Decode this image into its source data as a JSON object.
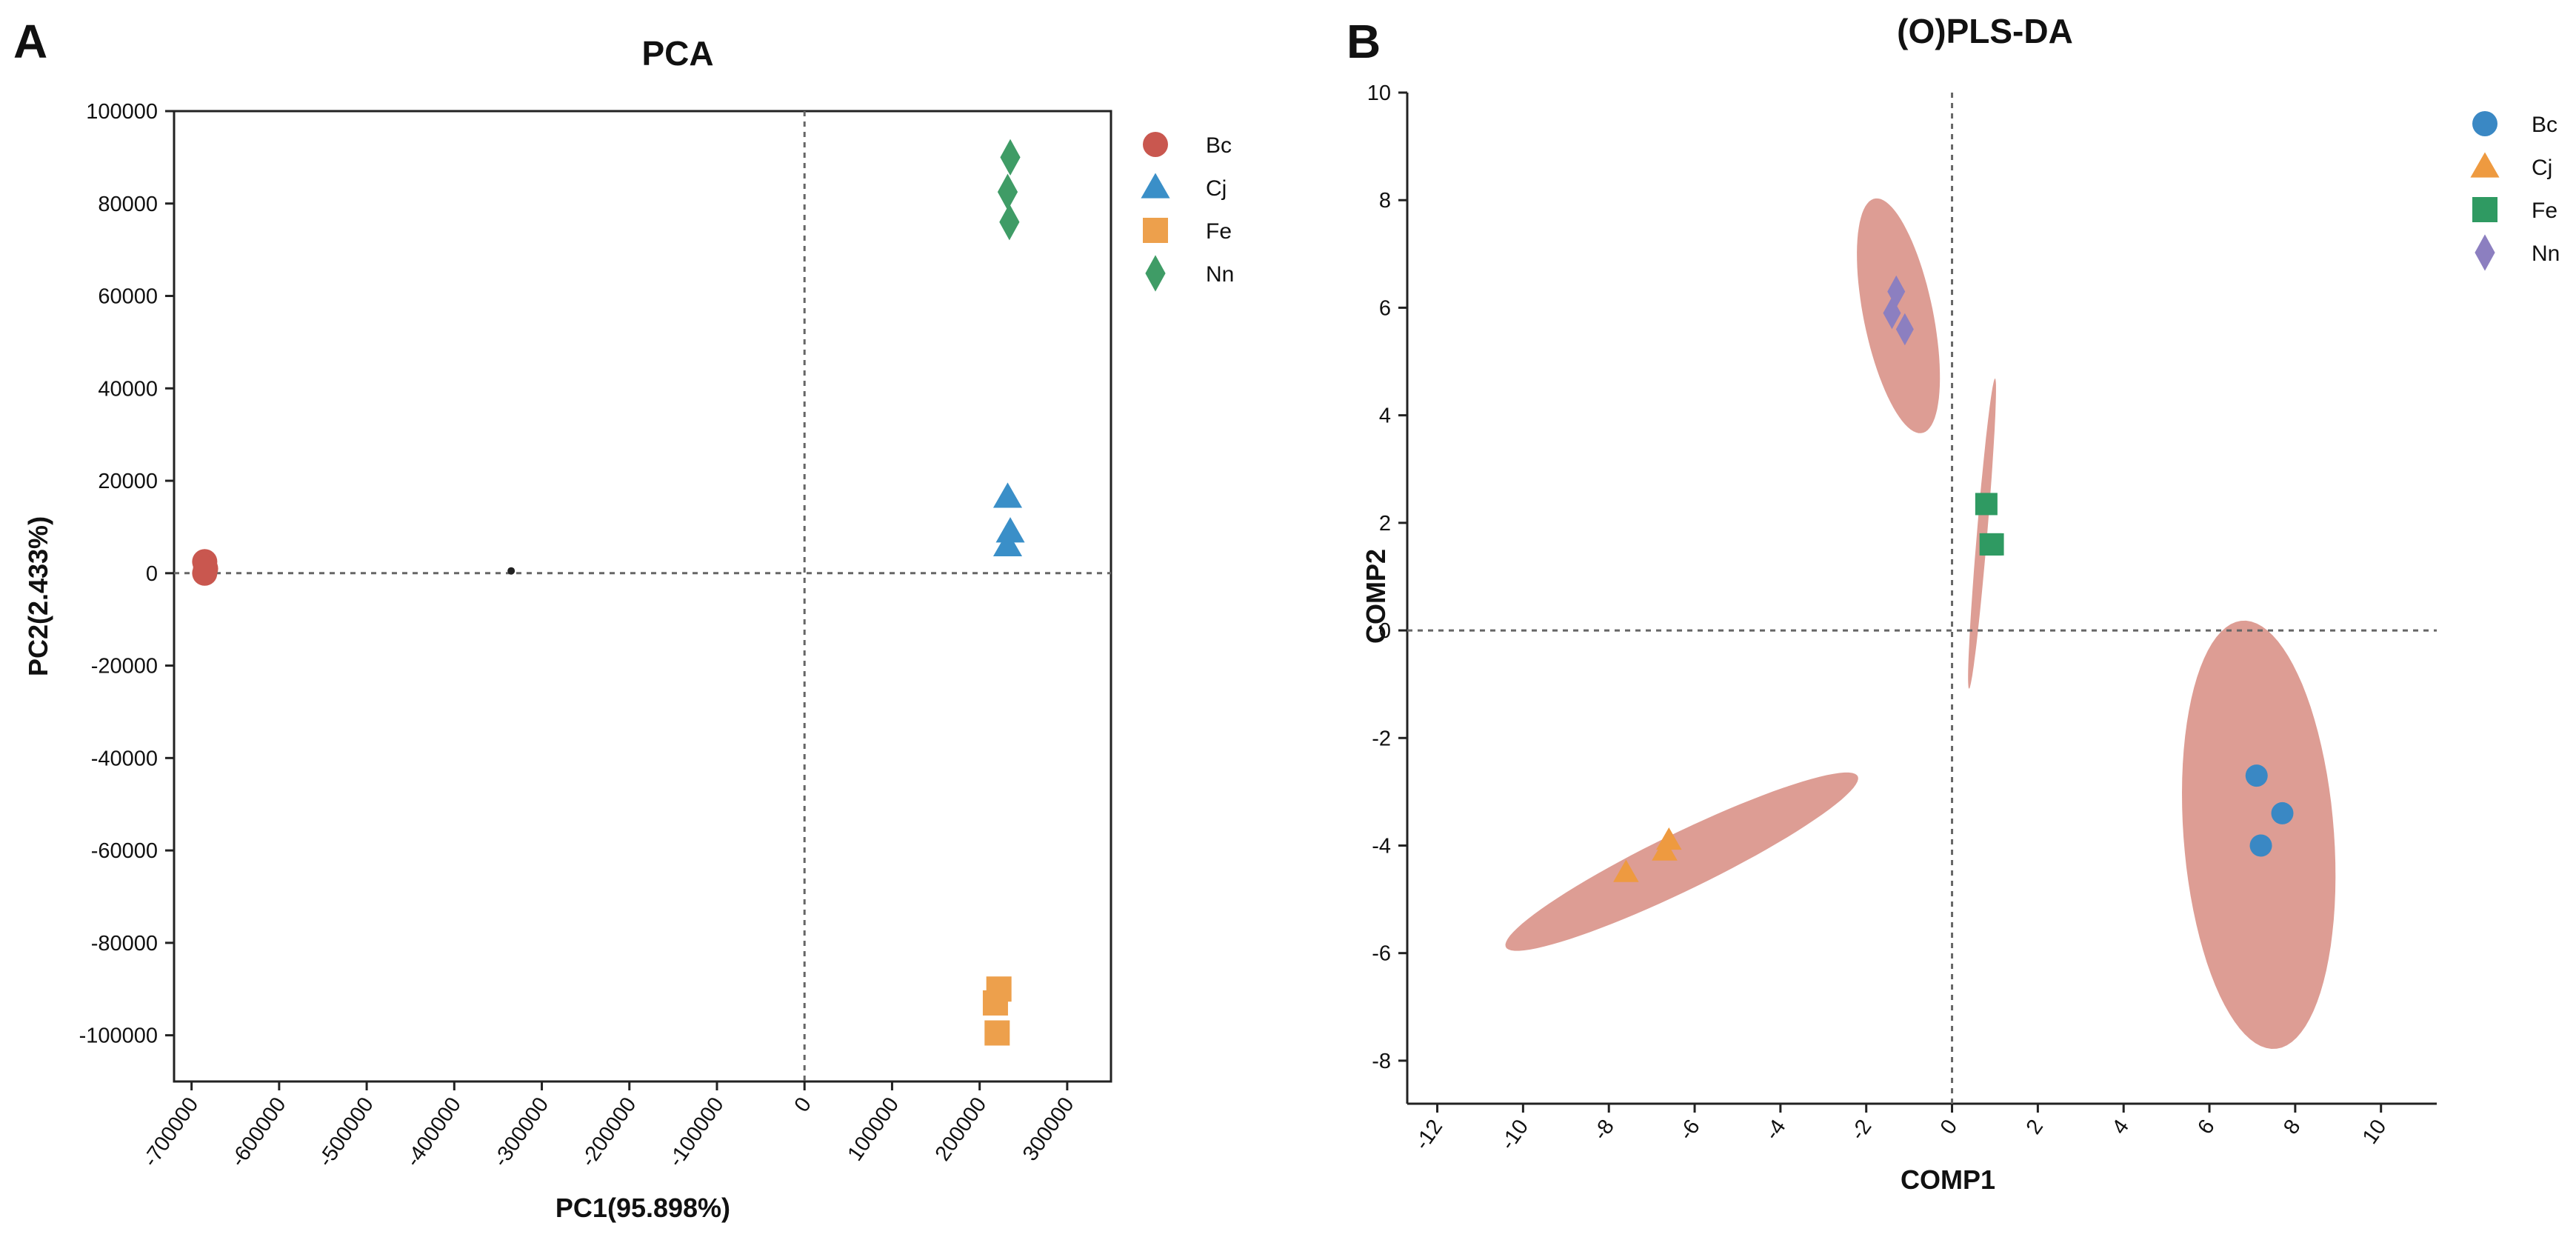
{
  "chart_data": [
    {
      "panel_letter": "A",
      "type": "scatter",
      "title": "PCA",
      "xlabel": "PC1(95.898%)",
      "ylabel": "PC2(2.433%)",
      "xlim": [
        -720000,
        350000
      ],
      "ylim": [
        -110000,
        100000
      ],
      "xticks": [
        -700000,
        -600000,
        -500000,
        -400000,
        -300000,
        -200000,
        -100000,
        0,
        100000,
        200000,
        300000
      ],
      "xtick_labels": [
        "-700000",
        "-600000",
        "-500000",
        "-400000",
        "-300000",
        "-200000",
        "-100000",
        "0",
        "100000",
        "200000",
        "300000"
      ],
      "yticks": [
        100000,
        80000,
        60000,
        40000,
        20000,
        0,
        -20000,
        -40000,
        -60000,
        -80000,
        -100000
      ],
      "ytick_labels": [
        "100000",
        "80000",
        "60000",
        "40000",
        "20000",
        "0",
        "-20000",
        "-40000",
        "-60000",
        "-80000",
        "-100000"
      ],
      "reference_lines": {
        "x": 0,
        "y": 0
      },
      "legend": [
        "Bc",
        "Cj",
        "Fe",
        "Nn"
      ],
      "legend_position": "right",
      "series": [
        {
          "name": "Bc",
          "marker": "circle",
          "color": "#c9574f",
          "points": [
            [
              -685000,
              2500
            ],
            [
              -685000,
              0
            ],
            [
              -684000,
              1000
            ]
          ]
        },
        {
          "name": "Cj",
          "marker": "triangle",
          "color": "#3a8fc8",
          "points": [
            [
              232000,
              16500
            ],
            [
              235000,
              9000
            ],
            [
              232000,
              6000
            ]
          ]
        },
        {
          "name": "Fe",
          "marker": "square",
          "color": "#eda04c",
          "points": [
            [
              222000,
              -90000
            ],
            [
              218000,
              -93000
            ],
            [
              220000,
              -99500
            ]
          ]
        },
        {
          "name": "Nn",
          "marker": "diamond",
          "color": "#3f9c66",
          "points": [
            [
              235000,
              90000
            ],
            [
              232000,
              82500
            ],
            [
              234000,
              76000
            ]
          ]
        }
      ],
      "annotations": [
        {
          "marker": "dot",
          "x": -335000,
          "y": 500
        }
      ]
    },
    {
      "panel_letter": "B",
      "type": "scatter",
      "title": "(O)PLS-DA",
      "xlabel": "COMP1",
      "ylabel": "COMP2",
      "xlim": [
        -12.7,
        11.3
      ],
      "ylim": [
        -8.8,
        10
      ],
      "xticks": [
        -12,
        -10,
        -8,
        -6,
        -4,
        -2,
        0,
        2,
        4,
        6,
        8,
        10
      ],
      "xtick_labels": [
        "-12",
        "-10",
        "-8",
        "-6",
        "-4",
        "-2",
        "0",
        "2",
        "4",
        "6",
        "8",
        "10"
      ],
      "yticks": [
        10,
        8,
        6,
        4,
        2,
        0,
        -2,
        -4,
        -6,
        -8
      ],
      "ytick_labels": [
        "10",
        "8",
        "6",
        "4",
        "2",
        "0",
        "-2",
        "-4",
        "-6",
        "-8"
      ],
      "reference_lines": {
        "x": 0,
        "y": 0
      },
      "legend": [
        "Bc",
        "Cj",
        "Fe",
        "Nn"
      ],
      "legend_position": "top-right",
      "series": [
        {
          "name": "Bc",
          "marker": "circle",
          "color": "#3a88c4",
          "points": [
            [
              7.1,
              -2.7
            ],
            [
              7.7,
              -3.4
            ],
            [
              7.2,
              -4.0
            ]
          ]
        },
        {
          "name": "Cj",
          "marker": "triangle",
          "color": "#ee9a40",
          "points": [
            [
              -7.6,
              -4.5
            ],
            [
              -6.7,
              -4.1
            ],
            [
              -6.6,
              -3.9
            ]
          ]
        },
        {
          "name": "Fe",
          "marker": "square",
          "color": "#2f9a62",
          "points": [
            [
              0.8,
              2.35
            ],
            [
              0.9,
              1.6
            ],
            [
              0.95,
              1.6
            ]
          ]
        },
        {
          "name": "Nn",
          "marker": "diamond",
          "color": "#8c7fc0",
          "points": [
            [
              -1.3,
              6.3
            ],
            [
              -1.4,
              5.9
            ],
            [
              -1.1,
              5.6
            ]
          ]
        }
      ],
      "ellipses": [
        {
          "group": "Bc",
          "cx": 7.15,
          "cy": -3.8,
          "semi_major": 4.0,
          "semi_minor": 1.75,
          "tilt_deg": 96
        },
        {
          "group": "Cj",
          "cx": -6.3,
          "cy": -4.3,
          "semi_major": 4.4,
          "semi_minor": 0.55,
          "tilt_deg": 21
        },
        {
          "group": "Fe",
          "cx": 0.7,
          "cy": 1.8,
          "semi_major": 2.9,
          "semi_minor": 0.12,
          "tilt_deg": 84
        },
        {
          "group": "Nn",
          "cx": -1.25,
          "cy": 5.85,
          "semi_major": 2.25,
          "semi_minor": 0.8,
          "tilt_deg": 105
        }
      ],
      "ellipse_color": "#d99288"
    }
  ]
}
